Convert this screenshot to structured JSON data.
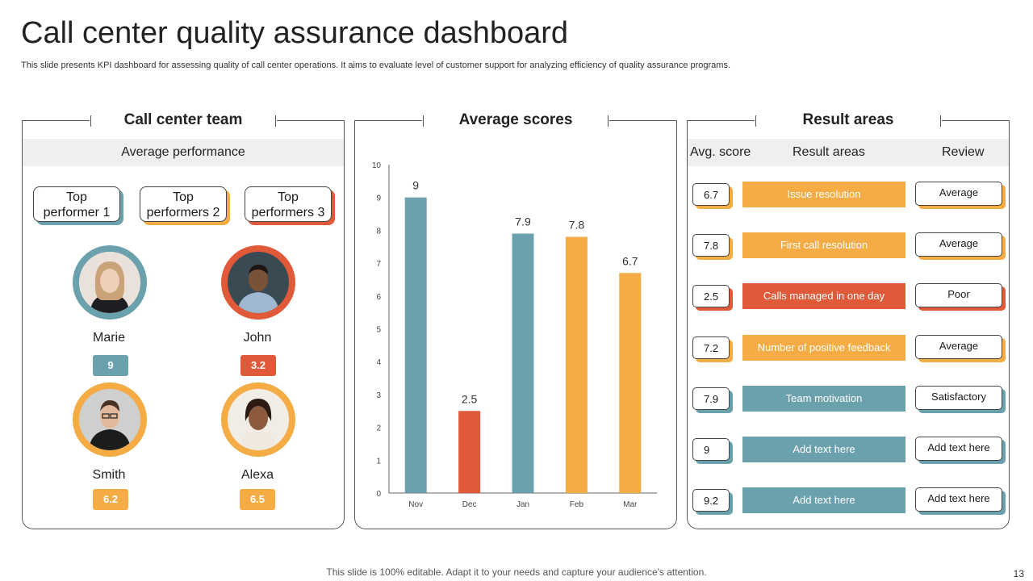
{
  "header": {
    "title": "Call center quality assurance dashboard",
    "subtitle": "This slide presents KPI dashboard for assessing quality of call center operations. It aims to evaluate level of customer support for analyzing efficiency of quality assurance programs."
  },
  "team_panel": {
    "title": "Call center team",
    "band_label": "Average performance",
    "cards": [
      {
        "line1": "Top",
        "line2": "performer 1"
      },
      {
        "line1": "Top",
        "line2": "performers 2"
      },
      {
        "line1": "Top",
        "line2": "performers 3"
      }
    ],
    "people": [
      {
        "name": "Marie",
        "score": "9",
        "color": "#6ba1ad"
      },
      {
        "name": "John",
        "score": "3.2",
        "color": "#e05a3a"
      },
      {
        "name": "Smith",
        "score": "6.2",
        "color": "#f5ac45"
      },
      {
        "name": "Alexa",
        "score": "6.5",
        "color": "#f5ac45"
      }
    ]
  },
  "scores_panel": {
    "title": "Average scores"
  },
  "chart_data": {
    "type": "bar",
    "title": "Average scores",
    "categories": [
      "Nov",
      "Dec",
      "Jan",
      "Feb",
      "Mar"
    ],
    "values": [
      9,
      2.5,
      7.9,
      7.8,
      6.7
    ],
    "value_labels": [
      "9",
      "2.5",
      "7.9",
      "7.8",
      "6.7"
    ],
    "colors": [
      "#6ba1ad",
      "#e05a3a",
      "#6ba1ad",
      "#f5ac45",
      "#f5ac45"
    ],
    "ylim": [
      0,
      10
    ],
    "yticks": [
      "0",
      "1",
      "2",
      "3",
      "4",
      "5",
      "6",
      "7",
      "8",
      "9",
      "10"
    ],
    "xlabel": "",
    "ylabel": "",
    "grid": false
  },
  "results_panel": {
    "title": "Result areas",
    "col_score": "Avg. score",
    "col_area": "Result areas",
    "col_review": "Review",
    "rows": [
      {
        "score": "6.7",
        "area": "Issue resolution",
        "review": "Average",
        "color": "#f5ac45"
      },
      {
        "score": "7.8",
        "area": "First call resolution",
        "review": "Average",
        "color": "#f5ac45"
      },
      {
        "score": "2.5",
        "area": "Calls managed in one day",
        "review": "Poor",
        "color": "#e05a3a"
      },
      {
        "score": "7.2",
        "area": "Number of positive feedback",
        "review": "Average",
        "color": "#f5ac45"
      },
      {
        "score": "7.9",
        "area": "Team motivation",
        "review": "Satisfactory",
        "color": "#6ba1ad"
      },
      {
        "score": "9",
        "area": "Add text here",
        "review": "Add text here",
        "color": "#6ba1ad"
      },
      {
        "score": "9.2",
        "area": "Add text here",
        "review": "Add text here",
        "color": "#6ba1ad"
      }
    ]
  },
  "footer": {
    "note": "This slide is 100% editable. Adapt it to your needs and capture your audience's attention.",
    "page_number": "13"
  }
}
